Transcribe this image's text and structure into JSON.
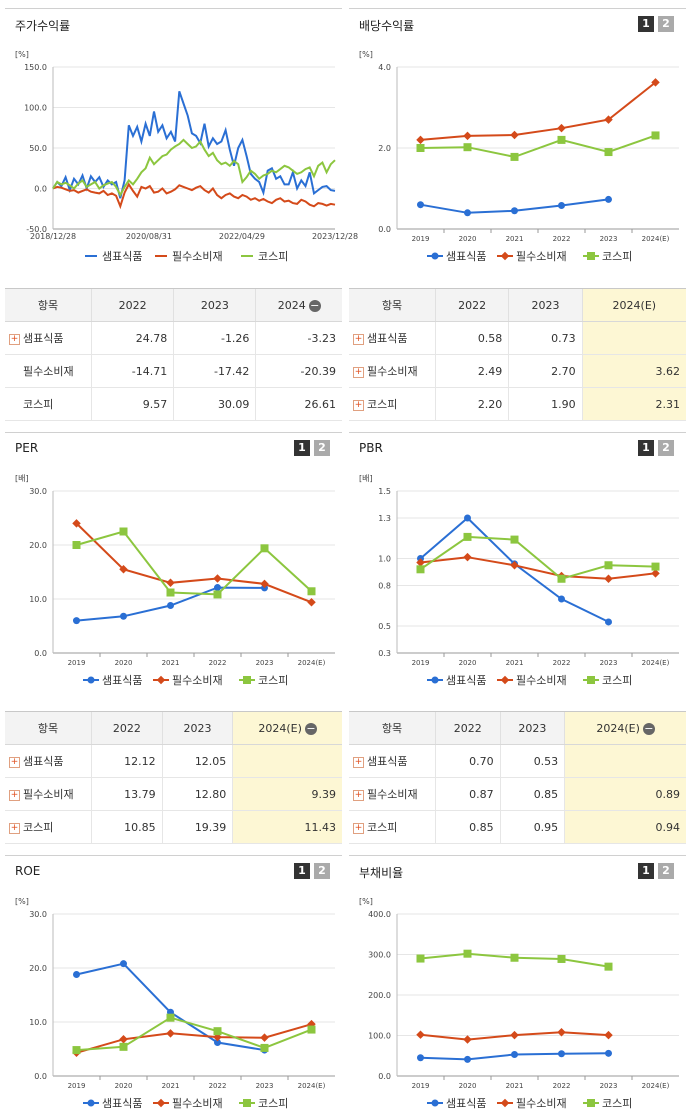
{
  "colors": {
    "samp": "#2a6fd4",
    "pilsu": "#d44a1a",
    "kospi": "#8cc63f",
    "highlight": "#fdf7d4"
  },
  "legend": [
    "샘표식품",
    "필수소비재",
    "코스피"
  ],
  "badges": [
    "1",
    "2"
  ],
  "panels": [
    {
      "title": "주가수익률",
      "chart_data": {
        "type": "line",
        "unit": "[%]",
        "ylim": [
          -50,
          150
        ],
        "yticks": [
          "150.0",
          "100.0",
          "50.0",
          "0.0",
          "-50.0"
        ],
        "xticks": [
          "2018/12/28",
          "2020/08/31",
          "2022/04/29",
          "2023/12/28"
        ],
        "x_range": [
          "2018/12/28",
          "2023/12/28"
        ],
        "series": [
          {
            "name": "샘표식품",
            "values": [
              0,
              8,
              3,
              14,
              -2,
              12,
              5,
              16,
              0,
              15,
              8,
              14,
              2,
              10,
              5,
              8,
              -12,
              10,
              78,
              65,
              76,
              58,
              80,
              65,
              95,
              70,
              78,
              62,
              70,
              58,
              120,
              105,
              90,
              68,
              65,
              56,
              80,
              52,
              62,
              55,
              58,
              72,
              48,
              28,
              50,
              60,
              40,
              18,
              12,
              8,
              -5,
              22,
              25,
              12,
              15,
              5,
              5,
              20,
              0,
              10,
              3,
              20,
              -6,
              -2,
              2,
              3,
              -2,
              -3
            ]
          },
          {
            "name": "필수소비재",
            "values": [
              0,
              2,
              1,
              -1,
              -3,
              -2,
              -5,
              -3,
              -1,
              -4,
              -5,
              -6,
              -3,
              -8,
              -6,
              -9,
              -22,
              -5,
              5,
              -3,
              -10,
              2,
              0,
              3,
              -5,
              -4,
              0,
              -6,
              -4,
              -1,
              4,
              2,
              0,
              -2,
              1,
              3,
              -2,
              -5,
              0,
              -8,
              -12,
              -8,
              -6,
              -10,
              -12,
              -8,
              -10,
              -14,
              -12,
              -15,
              -13,
              -16,
              -18,
              -14,
              -12,
              -16,
              -15,
              -18,
              -19,
              -14,
              -16,
              -20,
              -22,
              -18,
              -19,
              -21,
              -19,
              -20
            ]
          },
          {
            "name": "코스피",
            "values": [
              0,
              8,
              5,
              7,
              4,
              0,
              6,
              10,
              2,
              5,
              8,
              0,
              4,
              6,
              8,
              2,
              -8,
              2,
              10,
              5,
              12,
              20,
              25,
              38,
              30,
              35,
              40,
              42,
              48,
              52,
              55,
              60,
              55,
              50,
              52,
              58,
              48,
              40,
              44,
              35,
              30,
              32,
              28,
              34,
              30,
              8,
              14,
              22,
              18,
              12,
              16,
              18,
              22,
              20,
              24,
              28,
              26,
              22,
              18,
              20,
              24,
              26,
              15,
              28,
              32,
              20,
              30,
              35
            ]
          }
        ]
      }
    },
    {
      "title": "배당수익률",
      "chart_data": {
        "type": "line",
        "unit": "[%]",
        "ylim": [
          0,
          4
        ],
        "yticks": [
          "4.0",
          "2.0",
          "0.0"
        ],
        "categories": [
          "2019",
          "2020",
          "2021",
          "2022",
          "2023",
          "2024(E)"
        ],
        "series": [
          {
            "name": "샘표식품",
            "values": [
              0.6,
              0.4,
              0.45,
              0.58,
              0.73,
              null
            ]
          },
          {
            "name": "필수소비재",
            "values": [
              2.2,
              2.3,
              2.32,
              2.49,
              2.7,
              3.62
            ]
          },
          {
            "name": "코스피",
            "values": [
              2.0,
              2.02,
              1.78,
              2.2,
              1.9,
              2.31
            ]
          }
        ]
      }
    },
    {
      "title": "PER",
      "chart_data": {
        "type": "line",
        "unit": "[배]",
        "ylim": [
          0,
          30
        ],
        "yticks": [
          "30.0",
          "20.0",
          "10.0",
          "0.0"
        ],
        "categories": [
          "2019",
          "2020",
          "2021",
          "2022",
          "2023",
          "2024(E)"
        ],
        "series": [
          {
            "name": "샘표식품",
            "values": [
              6.0,
              6.8,
              8.8,
              12.12,
              12.05,
              null
            ]
          },
          {
            "name": "필수소비재",
            "values": [
              24.0,
              15.5,
              13.0,
              13.79,
              12.8,
              9.39
            ]
          },
          {
            "name": "코스피",
            "values": [
              20.0,
              22.5,
              11.2,
              10.85,
              19.39,
              11.43
            ]
          }
        ]
      }
    },
    {
      "title": "PBR",
      "chart_data": {
        "type": "line",
        "unit": "[배]",
        "ylim": [
          0.3,
          1.5
        ],
        "yticks": [
          "1.5",
          "1.3",
          "1.0",
          "0.8",
          "0.5",
          "0.3"
        ],
        "categories": [
          "2019",
          "2020",
          "2021",
          "2022",
          "2023",
          "2024(E)"
        ],
        "series": [
          {
            "name": "샘표식품",
            "values": [
              1.0,
              1.3,
              0.96,
              0.7,
              0.53,
              null
            ]
          },
          {
            "name": "필수소비재",
            "values": [
              0.97,
              1.01,
              0.95,
              0.87,
              0.85,
              0.89
            ]
          },
          {
            "name": "코스피",
            "values": [
              0.92,
              1.16,
              1.14,
              0.85,
              0.95,
              0.94
            ]
          }
        ]
      }
    },
    {
      "title": "ROE",
      "chart_data": {
        "type": "line",
        "unit": "[%]",
        "ylim": [
          0,
          30
        ],
        "yticks": [
          "30.0",
          "20.0",
          "10.0",
          "0.0"
        ],
        "categories": [
          "2019",
          "2020",
          "2021",
          "2022",
          "2023",
          "2024(E)"
        ],
        "series": [
          {
            "name": "샘표식품",
            "values": [
              18.8,
              20.8,
              11.8,
              6.2,
              4.8,
              null
            ]
          },
          {
            "name": "필수소비재",
            "values": [
              4.3,
              6.8,
              7.9,
              7.2,
              7.1,
              9.6
            ]
          },
          {
            "name": "코스피",
            "values": [
              4.8,
              5.4,
              10.8,
              8.3,
              5.2,
              8.6
            ]
          }
        ]
      }
    },
    {
      "title": "부채비율",
      "chart_data": {
        "type": "line",
        "unit": "[%]",
        "ylim": [
          0,
          400
        ],
        "yticks": [
          "400.0",
          "300.0",
          "200.0",
          "100.0",
          "0.0"
        ],
        "categories": [
          "2019",
          "2020",
          "2021",
          "2022",
          "2023",
          "2024(E)"
        ],
        "series": [
          {
            "name": "샘표식품",
            "values": [
              45,
              41,
              53,
              55,
              56,
              null
            ]
          },
          {
            "name": "필수소비재",
            "values": [
              102,
              90,
              101,
              108,
              101,
              null
            ]
          },
          {
            "name": "코스피",
            "values": [
              290,
              302,
              292,
              289,
              270,
              null
            ]
          }
        ]
      }
    }
  ],
  "tables": [
    {
      "headers": [
        "항목",
        "2022",
        "2023",
        "2024"
      ],
      "minus_on_last": true,
      "rows": [
        {
          "name": "샘표식품",
          "plus": true,
          "cells": [
            "24.78",
            "-1.26",
            "-3.23"
          ]
        },
        {
          "name": "필수소비재",
          "plus": false,
          "cells": [
            "-14.71",
            "-17.42",
            "-20.39"
          ]
        },
        {
          "name": "코스피",
          "plus": false,
          "cells": [
            "9.57",
            "30.09",
            "26.61"
          ]
        }
      ],
      "highlight_last": false
    },
    {
      "headers": [
        "항목",
        "2022",
        "2023",
        "2024(E)"
      ],
      "minus_on_last": false,
      "rows": [
        {
          "name": "샘표식품",
          "plus": true,
          "cells": [
            "0.58",
            "0.73",
            ""
          ]
        },
        {
          "name": "필수소비재",
          "plus": true,
          "cells": [
            "2.49",
            "2.70",
            "3.62"
          ]
        },
        {
          "name": "코스피",
          "plus": true,
          "cells": [
            "2.20",
            "1.90",
            "2.31"
          ]
        }
      ],
      "highlight_last": true
    },
    {
      "headers": [
        "항목",
        "2022",
        "2023",
        "2024(E)"
      ],
      "minus_on_last": true,
      "rows": [
        {
          "name": "샘표식품",
          "plus": true,
          "cells": [
            "12.12",
            "12.05",
            ""
          ]
        },
        {
          "name": "필수소비재",
          "plus": true,
          "cells": [
            "13.79",
            "12.80",
            "9.39"
          ]
        },
        {
          "name": "코스피",
          "plus": true,
          "cells": [
            "10.85",
            "19.39",
            "11.43"
          ]
        }
      ],
      "highlight_last": true
    },
    {
      "headers": [
        "항목",
        "2022",
        "2023",
        "2024(E)"
      ],
      "minus_on_last": true,
      "rows": [
        {
          "name": "샘표식품",
          "plus": true,
          "cells": [
            "0.70",
            "0.53",
            ""
          ]
        },
        {
          "name": "필수소비재",
          "plus": true,
          "cells": [
            "0.87",
            "0.85",
            "0.89"
          ]
        },
        {
          "name": "코스피",
          "plus": true,
          "cells": [
            "0.85",
            "0.95",
            "0.94"
          ]
        }
      ],
      "highlight_last": true
    }
  ]
}
